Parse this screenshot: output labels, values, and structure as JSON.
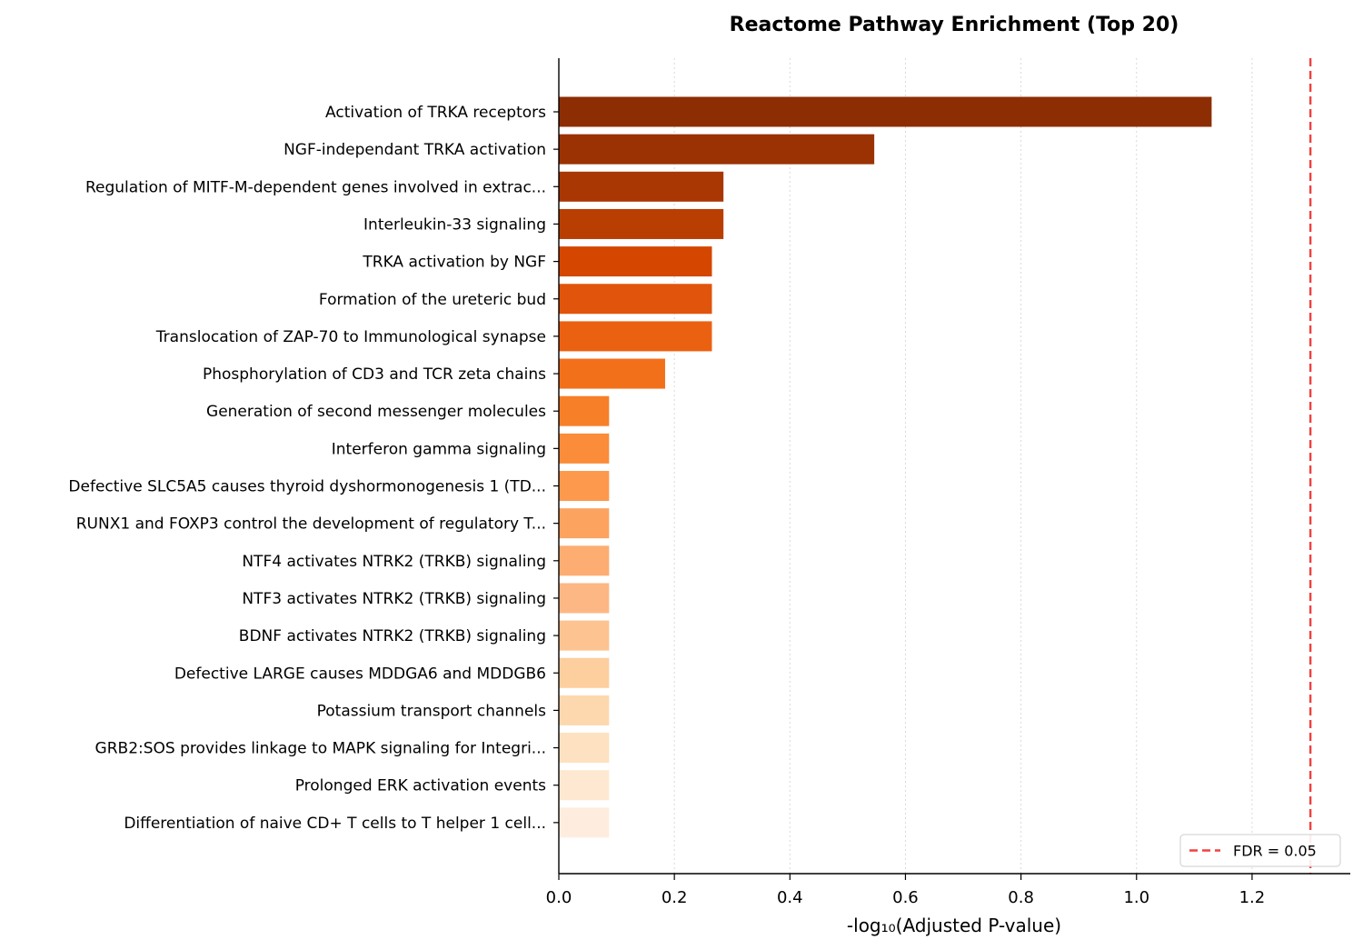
{
  "chart_data": {
    "type": "bar",
    "orientation": "horizontal",
    "title": "Reactome Pathway Enrichment (Top 20)",
    "xlabel": "-log₁₀(Adjusted P-value)",
    "ylabel": "",
    "xlim": [
      0.0,
      1.37
    ],
    "x_ticks": [
      "0.0",
      "0.2",
      "0.4",
      "0.6",
      "0.8",
      "1.0",
      "1.2"
    ],
    "x_tick_values": [
      0.0,
      0.2,
      0.4,
      0.6,
      0.8,
      1.0,
      1.2
    ],
    "grid": "x-axis dotted",
    "categories": [
      "Activation of TRKA receptors",
      "NGF-independant TRKA activation",
      "Regulation of MITF-M-dependent genes involved in extrac...",
      "Interleukin-33 signaling",
      "TRKA activation by NGF",
      "Formation of the ureteric bud",
      "Translocation of ZAP-70 to Immunological synapse",
      "Phosphorylation of CD3 and TCR zeta chains",
      "Generation of second messenger molecules",
      "Interferon gamma signaling",
      "Defective SLC5A5 causes thyroid dyshormonogenesis 1 (TD...",
      "RUNX1 and FOXP3 control the development of regulatory T...",
      "NTF4 activates NTRK2 (TRKB) signaling",
      "NTF3 activates NTRK2 (TRKB) signaling",
      "BDNF activates NTRK2 (TRKB) signaling",
      "Defective LARGE causes MDDGA6 and MDDGB6",
      "Potassium transport channels",
      "GRB2:SOS provides linkage to MAPK signaling for Integri...",
      "Prolonged ERK activation events",
      "Differentiation of naive CD+ T cells to T helper 1 cell..."
    ],
    "values": [
      1.13,
      0.546,
      0.285,
      0.285,
      0.265,
      0.265,
      0.265,
      0.184,
      0.087,
      0.087,
      0.087,
      0.087,
      0.087,
      0.087,
      0.087,
      0.087,
      0.087,
      0.087,
      0.087,
      0.087
    ],
    "colors": [
      "#8c2d04",
      "#9a3203",
      "#a93703",
      "#b93e02",
      "#d54601",
      "#e1540b",
      "#eb6112",
      "#f3701b",
      "#f77f28",
      "#fa8c3a",
      "#fd994d",
      "#fda360",
      "#fdad72",
      "#fdb784",
      "#fdc391",
      "#fdce9e",
      "#fdd8ae",
      "#fee1c1",
      "#fee8d1",
      "#feeddf"
    ],
    "threshold": {
      "value": 1.301,
      "label": "FDR = 0.05",
      "color": "#f0413e",
      "style": "dashed"
    },
    "legend": {
      "position": "bottom-right",
      "entries": [
        "FDR = 0.05"
      ]
    }
  }
}
